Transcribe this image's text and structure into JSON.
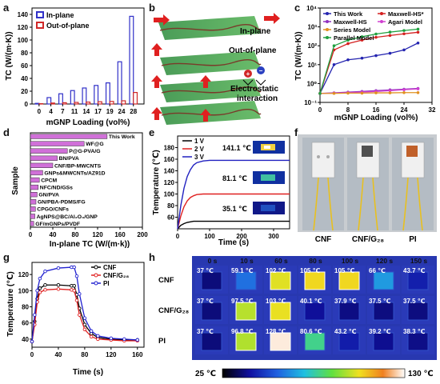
{
  "panel_letters": [
    "a",
    "b",
    "c",
    "d",
    "e",
    "f",
    "g",
    "h"
  ],
  "colors": {
    "in_plane": "#3030c8",
    "out_of_plane": "#d02828",
    "this_work": "#2424b0",
    "maxwell_hs_star": "#d42020",
    "maxwell_hs": "#9030c0",
    "agari": "#d040d0",
    "series": "#e09020",
    "parallel": "#20a040",
    "cnf": "#000000",
    "cnf_g28": "#e02020",
    "pi": "#2020d0",
    "d_bar_fill": "#d070d8",
    "d_bar_edge": "#303030"
  },
  "panel_a": {
    "ylabel": "TC (W/(m·K))",
    "xlabel": "mGNP Loading (vol%)",
    "legend": [
      "In-plane",
      "Out-of-plane"
    ],
    "chart_data": {
      "type": "bar",
      "categories": [
        "0",
        "4",
        "7",
        "11",
        "14",
        "17",
        "19",
        "24",
        "28"
      ],
      "series": [
        {
          "name": "In-plane",
          "values": [
            1,
            10,
            16,
            21,
            25,
            29,
            33,
            66,
            137
          ]
        },
        {
          "name": "Out-of-plane",
          "values": [
            0.5,
            1.5,
            2,
            2.5,
            3,
            3.5,
            4,
            5,
            18
          ]
        }
      ],
      "ylim": [
        0,
        150
      ],
      "yticks": [
        0,
        20,
        40,
        60,
        80,
        100,
        120,
        140
      ]
    }
  },
  "panel_b": {
    "labels": {
      "in_plane": "In-plane",
      "out_of_plane": "Out-of-plane",
      "electrostatic": "Electrostatic\ninteraction"
    }
  },
  "panel_c": {
    "ylabel": "TC (W/(m·K))",
    "xlabel": "mGNP Loading (vol%)",
    "legend": [
      "This Work",
      "Maxwell-HS*",
      "Maxwell-HS",
      "Agari Model",
      "Series Model",
      "Parallel Model"
    ],
    "chart_data": {
      "type": "line",
      "x": [
        0,
        4,
        8,
        12,
        16,
        20,
        24,
        28
      ],
      "yscale": "log",
      "ylim": [
        0.1,
        10000
      ],
      "xlim": [
        0,
        32
      ],
      "xticks": [
        0,
        8,
        16,
        24,
        32
      ],
      "yticks": [
        "10⁻¹",
        "10⁰",
        "10¹",
        "10²",
        "10³",
        "10⁴"
      ],
      "series": [
        {
          "name": "This Work",
          "values": [
            0.3,
            10,
            18,
            22,
            30,
            40,
            60,
            140
          ]
        },
        {
          "name": "Maxwell-HS*",
          "values": [
            0.3,
            60,
            130,
            200,
            280,
            350,
            430,
            520
          ]
        },
        {
          "name": "Maxwell-HS",
          "values": [
            0.3,
            0.32,
            0.35,
            0.38,
            0.42,
            0.46,
            0.5,
            0.55
          ]
        },
        {
          "name": "Agari Model",
          "values": [
            0.3,
            0.31,
            0.33,
            0.35,
            0.38,
            0.42,
            0.47,
            0.52
          ]
        },
        {
          "name": "Series Model",
          "values": [
            0.3,
            0.3,
            0.31,
            0.31,
            0.32,
            0.32,
            0.33,
            0.33
          ]
        },
        {
          "name": "Parallel Model",
          "values": [
            0.3,
            100,
            200,
            300,
            420,
            530,
            640,
            760
          ]
        }
      ]
    }
  },
  "panel_d": {
    "ylabel": "Sample",
    "xlabel": "In-plane TC (W/(m·k))",
    "chart_data": {
      "type": "bar",
      "orientation": "horizontal",
      "categories": [
        "GF/mGNPs/PVDF",
        "AgNPS@BC/Al₂O₃/GNP",
        "CPGO/CNFs",
        "GN/PBA-PDMS/FG",
        "GN/PVA",
        "NFC/ND/GSs",
        "CPCM",
        "GNPs&MWCNTs/AZ91D",
        "CNF/BP-MWCNTS",
        "BN/PVA",
        "P@G-PVA/G",
        "WF@G",
        "This Work"
      ],
      "values": [
        6,
        8,
        9,
        10,
        12,
        14,
        16,
        22,
        40,
        48,
        66,
        96,
        137
      ],
      "xlim": [
        0,
        200
      ],
      "xticks": [
        0,
        40,
        80,
        120,
        160,
        200
      ]
    }
  },
  "panel_e": {
    "ylabel": "Temperature (℃)",
    "xlabel": "Time (s)",
    "legend": [
      "1 V",
      "2 V",
      "3 V"
    ],
    "annotations": [
      "141.1 ℃",
      "81.1 ℃",
      "35.1 ℃"
    ],
    "chart_data": {
      "type": "line",
      "x": [
        0,
        10,
        20,
        30,
        40,
        50,
        60,
        80,
        100,
        150,
        200,
        250,
        300,
        350
      ],
      "xlim": [
        0,
        350
      ],
      "ylim": [
        40,
        200
      ],
      "xticks": [
        0,
        100,
        200,
        300
      ],
      "yticks": [
        60,
        80,
        100,
        120,
        140,
        160,
        180
      ],
      "series": [
        {
          "name": "1 V",
          "values": [
            40,
            46,
            49,
            51,
            52,
            53,
            53,
            53,
            53,
            53,
            53,
            53,
            53,
            53
          ]
        },
        {
          "name": "2 V",
          "values": [
            40,
            62,
            78,
            88,
            94,
            97,
            99,
            100,
            100,
            100,
            100,
            100,
            100,
            100
          ]
        },
        {
          "name": "3 V",
          "values": [
            40,
            80,
            110,
            130,
            142,
            150,
            154,
            157,
            158,
            158,
            158,
            158,
            158,
            158
          ]
        }
      ]
    }
  },
  "panel_f": {
    "labels": [
      "CNF",
      "CNF/G₂₈",
      "PI"
    ]
  },
  "panel_g": {
    "ylabel": "Temperature (℃)",
    "xlabel": "Time (s)",
    "legend": [
      "CNF",
      "CNF/G₂₈",
      "PI"
    ],
    "chart_data": {
      "type": "line",
      "x": [
        0,
        4,
        8,
        12,
        20,
        40,
        60,
        64,
        68,
        72,
        80,
        90,
        100,
        120,
        140,
        160
      ],
      "xlim": [
        0,
        170
      ],
      "ylim": [
        30,
        135
      ],
      "xticks": [
        0,
        40,
        80,
        120,
        160
      ],
      "yticks": [
        40,
        60,
        80,
        100,
        120
      ],
      "series": [
        {
          "name": "CNF",
          "values": [
            37,
            62,
            90,
            103,
            107,
            107,
            106,
            106,
            95,
            78,
            58,
            47,
            42,
            40,
            39,
            39
          ]
        },
        {
          "name": "CNF/G₂₈",
          "values": [
            37,
            58,
            86,
            98,
            101,
            102,
            101,
            100,
            88,
            70,
            52,
            43,
            40,
            39,
            38,
            38
          ]
        },
        {
          "name": "PI",
          "values": [
            37,
            70,
            100,
            115,
            124,
            128,
            129,
            129,
            118,
            96,
            66,
            50,
            44,
            41,
            40,
            39
          ]
        }
      ]
    }
  },
  "panel_h": {
    "time_labels": [
      "0 s",
      "10 s",
      "60 s",
      "80 s",
      "100 s",
      "120 s",
      "150 s"
    ],
    "row_labels": [
      "CNF",
      "CNF/G₂₈",
      "PI"
    ],
    "rows": [
      [
        "37 ℃",
        "59.1 ℃",
        "102 ℃",
        "105 ℃",
        "105 ℃",
        "66 ℃",
        "43.7 ℃"
      ],
      [
        "37 ℃",
        "97.5 ℃",
        "103 ℃",
        "40.1 ℃",
        "37.9 ℃",
        "37.5 ℃",
        "37.5 ℃"
      ],
      [
        "37 ℃",
        "96.8 ℃",
        "128 ℃",
        "80.6 ℃",
        "43.2 ℃",
        "39.2 ℃",
        "38.3 ℃"
      ]
    ],
    "colorbar_min": "25 ℃",
    "colorbar_max": "130 ℃"
  }
}
